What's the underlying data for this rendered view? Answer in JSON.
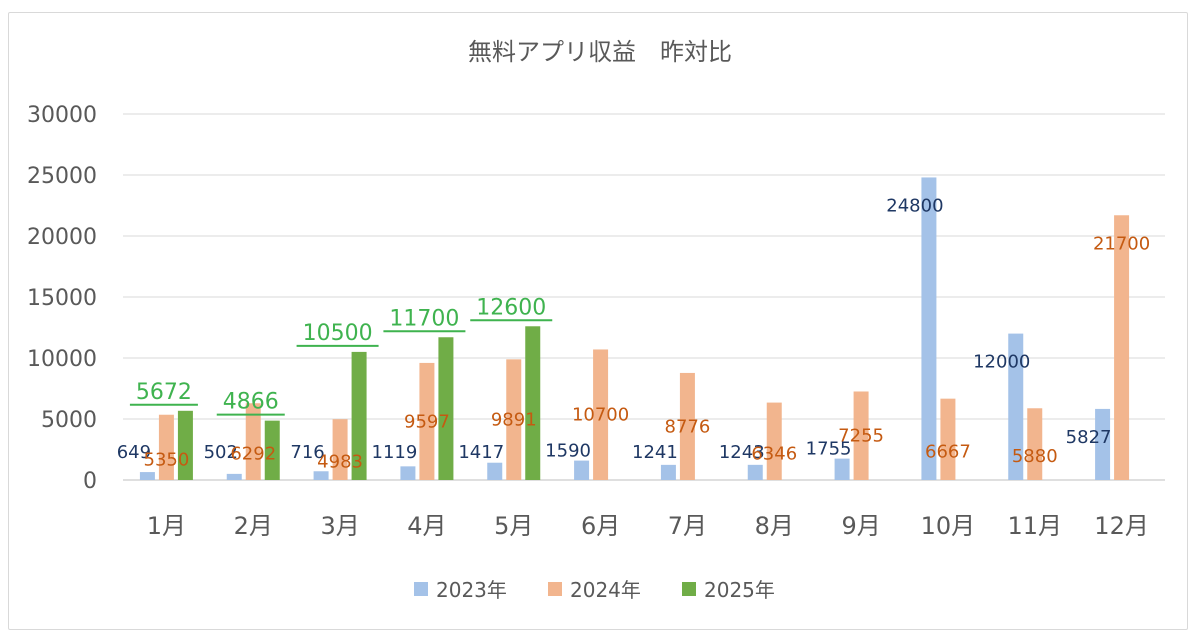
{
  "chart_data": {
    "type": "bar",
    "title": "無料アプリ収益　昨対比",
    "xlabel": "",
    "ylabel": "",
    "ylim": [
      0,
      30000
    ],
    "yticks": [
      0,
      5000,
      10000,
      15000,
      20000,
      25000,
      30000
    ],
    "grid": true,
    "legend": "bottom",
    "categories": [
      "1月",
      "2月",
      "3月",
      "4月",
      "5月",
      "6月",
      "7月",
      "8月",
      "9月",
      "10月",
      "11月",
      "12月"
    ],
    "series": [
      {
        "name": "2023年",
        "color": "#a4c2e8",
        "label_color": "#1f3864",
        "values": [
          649,
          502,
          716,
          1119,
          1417,
          1590,
          1241,
          1243,
          1755,
          24800,
          12000,
          5827
        ]
      },
      {
        "name": "2024年",
        "color": "#f2b58e",
        "label_color": "#c55a11",
        "values": [
          5350,
          6292,
          4983,
          9597,
          9891,
          10700,
          8776,
          6346,
          7255,
          6667,
          5880,
          21700
        ]
      },
      {
        "name": "2025年",
        "color": "#70ad47",
        "label_color": "#3fb34f",
        "values": [
          5672,
          4866,
          10500,
          11700,
          12600,
          null,
          null,
          null,
          null,
          null,
          null,
          null
        ]
      }
    ]
  }
}
